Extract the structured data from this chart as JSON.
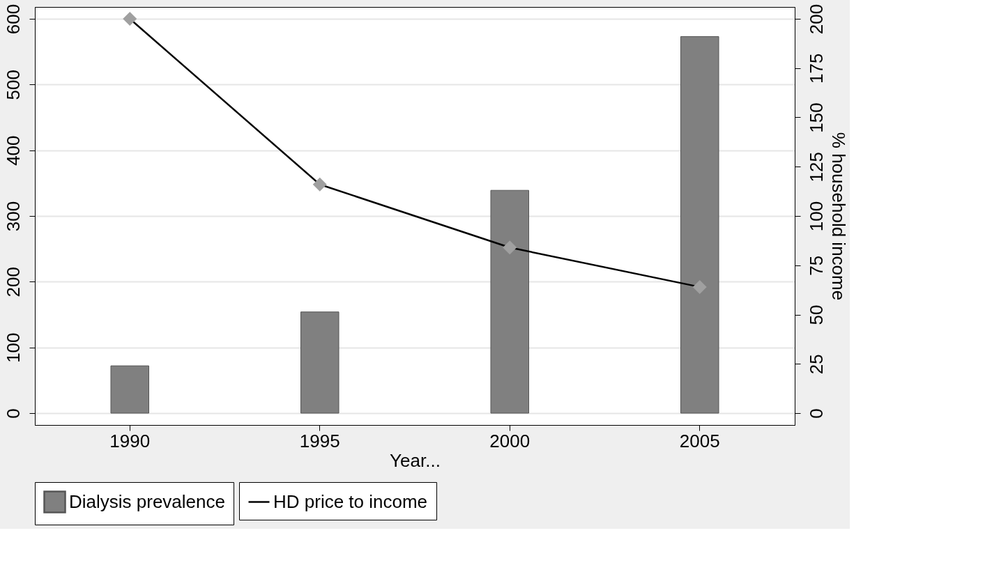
{
  "chart_data": {
    "type": "bar",
    "xlabel": "Year...",
    "y2label": "% household income",
    "categories": [
      "1990",
      "1995",
      "2000",
      "2005"
    ],
    "series": [
      {
        "name": "Dialysis prevalence",
        "color": "#808080",
        "values": [
          72,
          154,
          339,
          573
        ]
      },
      {
        "name": "HD price to income",
        "type": "line",
        "axis": "y2",
        "color": "#000000",
        "marker": "diamond",
        "values": [
          200,
          116,
          84,
          64
        ]
      }
    ],
    "ylim": [
      -18,
      618
    ],
    "yticks": [
      0,
      100,
      200,
      300,
      400,
      500,
      600
    ],
    "y2lim": [
      -6,
      206
    ],
    "y2ticks": [
      0,
      25,
      50,
      75,
      100,
      125,
      150,
      175,
      200
    ],
    "grid": "y",
    "legend": "bottom"
  }
}
